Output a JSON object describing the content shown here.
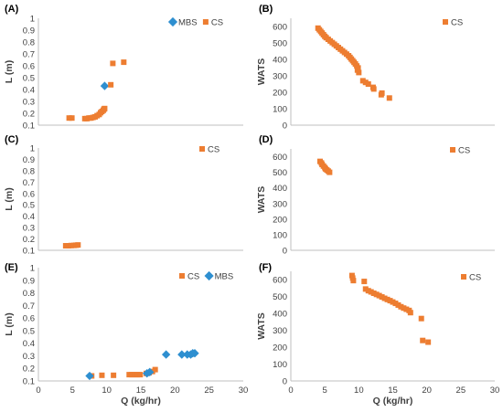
{
  "colors": {
    "cs": "#ED7D31",
    "mbs": "#2E8FD0",
    "axis": "#BFBFBF",
    "text": "#404040"
  },
  "chart_data": [
    {
      "type": "scatter",
      "panel": "(A)",
      "ylabel": "L (m)",
      "xlim": [
        0,
        30
      ],
      "ylim": [
        0.1,
        1.0
      ],
      "yticks": [
        "0.1",
        "0.2",
        "0.3",
        "0.4",
        "0.5",
        "0.6",
        "0.7",
        "0.8",
        "0.9",
        "1"
      ],
      "xticks": [],
      "legend_position": "top-right",
      "series": [
        {
          "name": "MBS",
          "marker": "diamond",
          "color": "#2E8FD0",
          "points": [
            [
              9.7,
              0.43
            ]
          ]
        },
        {
          "name": "CS",
          "marker": "square",
          "color": "#ED7D31",
          "points": [
            [
              4.5,
              0.16
            ],
            [
              4.9,
              0.16
            ],
            [
              6.8,
              0.155
            ],
            [
              7.1,
              0.155
            ],
            [
              7.4,
              0.16
            ],
            [
              7.7,
              0.16
            ],
            [
              8.0,
              0.165
            ],
            [
              8.3,
              0.17
            ],
            [
              8.6,
              0.18
            ],
            [
              8.9,
              0.19
            ],
            [
              9.1,
              0.205
            ],
            [
              9.3,
              0.215
            ],
            [
              9.5,
              0.225
            ],
            [
              9.6,
              0.235
            ],
            [
              9.7,
              0.24
            ],
            [
              10.6,
              0.44
            ],
            [
              10.9,
              0.62
            ],
            [
              12.5,
              0.63
            ]
          ]
        }
      ]
    },
    {
      "type": "scatter",
      "panel": "(B)",
      "ylabel": "WATS",
      "xlim": [
        0,
        30
      ],
      "ylim": [
        0,
        650
      ],
      "yticks": [
        "0",
        "100",
        "200",
        "300",
        "400",
        "500",
        "600"
      ],
      "xticks": [],
      "legend_position": "top-right",
      "series": [
        {
          "name": "CS",
          "marker": "square",
          "color": "#ED7D31",
          "points": [
            [
              4.0,
              590
            ],
            [
              4.2,
              580
            ],
            [
              4.4,
              570
            ],
            [
              4.6,
              560
            ],
            [
              4.8,
              550
            ],
            [
              5.0,
              540
            ],
            [
              5.2,
              532
            ],
            [
              5.5,
              522
            ],
            [
              5.8,
              512
            ],
            [
              6.1,
              502
            ],
            [
              6.4,
              492
            ],
            [
              6.7,
              482
            ],
            [
              7.0,
              472
            ],
            [
              7.3,
              462
            ],
            [
              7.6,
              452
            ],
            [
              7.9,
              442
            ],
            [
              8.2,
              432
            ],
            [
              8.5,
              422
            ],
            [
              8.7,
              412
            ],
            [
              8.9,
              402
            ],
            [
              9.1,
              392
            ],
            [
              9.3,
              382
            ],
            [
              9.5,
              372
            ],
            [
              9.7,
              360
            ],
            [
              9.9,
              348
            ],
            [
              9.8,
              335
            ],
            [
              10.0,
              320
            ],
            [
              10.6,
              270
            ],
            [
              11.0,
              260
            ],
            [
              11.4,
              250
            ],
            [
              12.1,
              230
            ],
            [
              12.2,
              220
            ],
            [
              13.4,
              195
            ],
            [
              13.3,
              185
            ],
            [
              14.5,
              165
            ]
          ]
        }
      ]
    },
    {
      "type": "scatter",
      "panel": "(C)",
      "ylabel": "L (m)",
      "xlim": [
        0,
        30
      ],
      "ylim": [
        0.1,
        1.0
      ],
      "yticks": [
        "0.1",
        "0.2",
        "0.3",
        "0.4",
        "0.5",
        "0.6",
        "0.7",
        "0.8",
        "0.9",
        "1"
      ],
      "xticks": [],
      "legend_position": "top-right",
      "series": [
        {
          "name": "CS",
          "marker": "square",
          "color": "#ED7D31",
          "points": [
            [
              4.0,
              0.14
            ],
            [
              4.4,
              0.14
            ],
            [
              4.8,
              0.142
            ],
            [
              5.2,
              0.143
            ],
            [
              5.5,
              0.145
            ],
            [
              5.8,
              0.147
            ]
          ]
        }
      ]
    },
    {
      "type": "scatter",
      "panel": "(D)",
      "ylabel": "WATS",
      "xlim": [
        0,
        30
      ],
      "ylim": [
        0,
        650
      ],
      "yticks": [
        "0",
        "100",
        "200",
        "300",
        "400",
        "500",
        "600"
      ],
      "xticks": [],
      "legend_position": "top-right",
      "series": [
        {
          "name": "CS",
          "marker": "square",
          "color": "#ED7D31",
          "points": [
            [
              4.3,
              570
            ],
            [
              4.5,
              560
            ],
            [
              4.6,
              550
            ],
            [
              4.8,
              540
            ],
            [
              5.0,
              530
            ],
            [
              5.1,
              522
            ],
            [
              5.3,
              515
            ],
            [
              5.5,
              508
            ],
            [
              5.7,
              500
            ]
          ]
        }
      ]
    },
    {
      "type": "scatter",
      "panel": "(E)",
      "ylabel": "L (m)",
      "xlabel": "Q (kg/hr)",
      "xlim": [
        0,
        30
      ],
      "ylim": [
        0.1,
        1.0
      ],
      "yticks": [
        "0.1",
        "0.2",
        "0.3",
        "0.4",
        "0.5",
        "0.6",
        "0.7",
        "0.8",
        "0.9",
        "1"
      ],
      "xticks": [
        "0",
        "5",
        "10",
        "15",
        "20",
        "25",
        "30"
      ],
      "legend_position": "top-right",
      "series": [
        {
          "name": "CS",
          "marker": "square",
          "color": "#ED7D31",
          "points": [
            [
              7.8,
              0.14
            ],
            [
              9.3,
              0.145
            ],
            [
              11.0,
              0.145
            ],
            [
              13.3,
              0.15
            ],
            [
              13.7,
              0.15
            ],
            [
              14.1,
              0.15
            ],
            [
              14.5,
              0.15
            ],
            [
              14.9,
              0.15
            ],
            [
              15.8,
              0.16
            ],
            [
              16.2,
              0.165
            ],
            [
              16.7,
              0.175
            ],
            [
              17.1,
              0.19
            ]
          ]
        },
        {
          "name": "MBS",
          "marker": "diamond",
          "color": "#2E8FD0",
          "points": [
            [
              7.5,
              0.14
            ],
            [
              15.9,
              0.16
            ],
            [
              16.3,
              0.17
            ],
            [
              18.7,
              0.31
            ],
            [
              21.0,
              0.31
            ],
            [
              21.8,
              0.31
            ],
            [
              22.3,
              0.31
            ],
            [
              22.6,
              0.32
            ],
            [
              22.9,
              0.32
            ]
          ]
        }
      ]
    },
    {
      "type": "scatter",
      "panel": "(F)",
      "ylabel": "WATS",
      "xlabel": "Q (kg/hr)",
      "xlim": [
        0,
        30
      ],
      "ylim": [
        0,
        650
      ],
      "yticks": [
        "0",
        "100",
        "200",
        "300",
        "400",
        "500",
        "600"
      ],
      "xticks": [
        "0",
        "5",
        "10",
        "15",
        "20",
        "25",
        "30"
      ],
      "legend_position": "top-right",
      "series": [
        {
          "name": "CS",
          "marker": "square",
          "color": "#ED7D31",
          "points": [
            [
              9.0,
              625
            ],
            [
              9.1,
              610
            ],
            [
              9.2,
              595
            ],
            [
              10.8,
              590
            ],
            [
              11.0,
              545
            ],
            [
              11.4,
              535
            ],
            [
              11.8,
              528
            ],
            [
              12.2,
              520
            ],
            [
              12.6,
              513
            ],
            [
              13.0,
              506
            ],
            [
              13.4,
              498
            ],
            [
              13.8,
              490
            ],
            [
              14.2,
              483
            ],
            [
              14.6,
              476
            ],
            [
              15.0,
              468
            ],
            [
              15.4,
              460
            ],
            [
              15.8,
              450
            ],
            [
              16.2,
              440
            ],
            [
              16.6,
              432
            ],
            [
              17.0,
              425
            ],
            [
              17.4,
              418
            ],
            [
              17.6,
              405
            ],
            [
              19.2,
              370
            ],
            [
              19.4,
              240
            ],
            [
              20.2,
              230
            ]
          ]
        }
      ]
    }
  ]
}
